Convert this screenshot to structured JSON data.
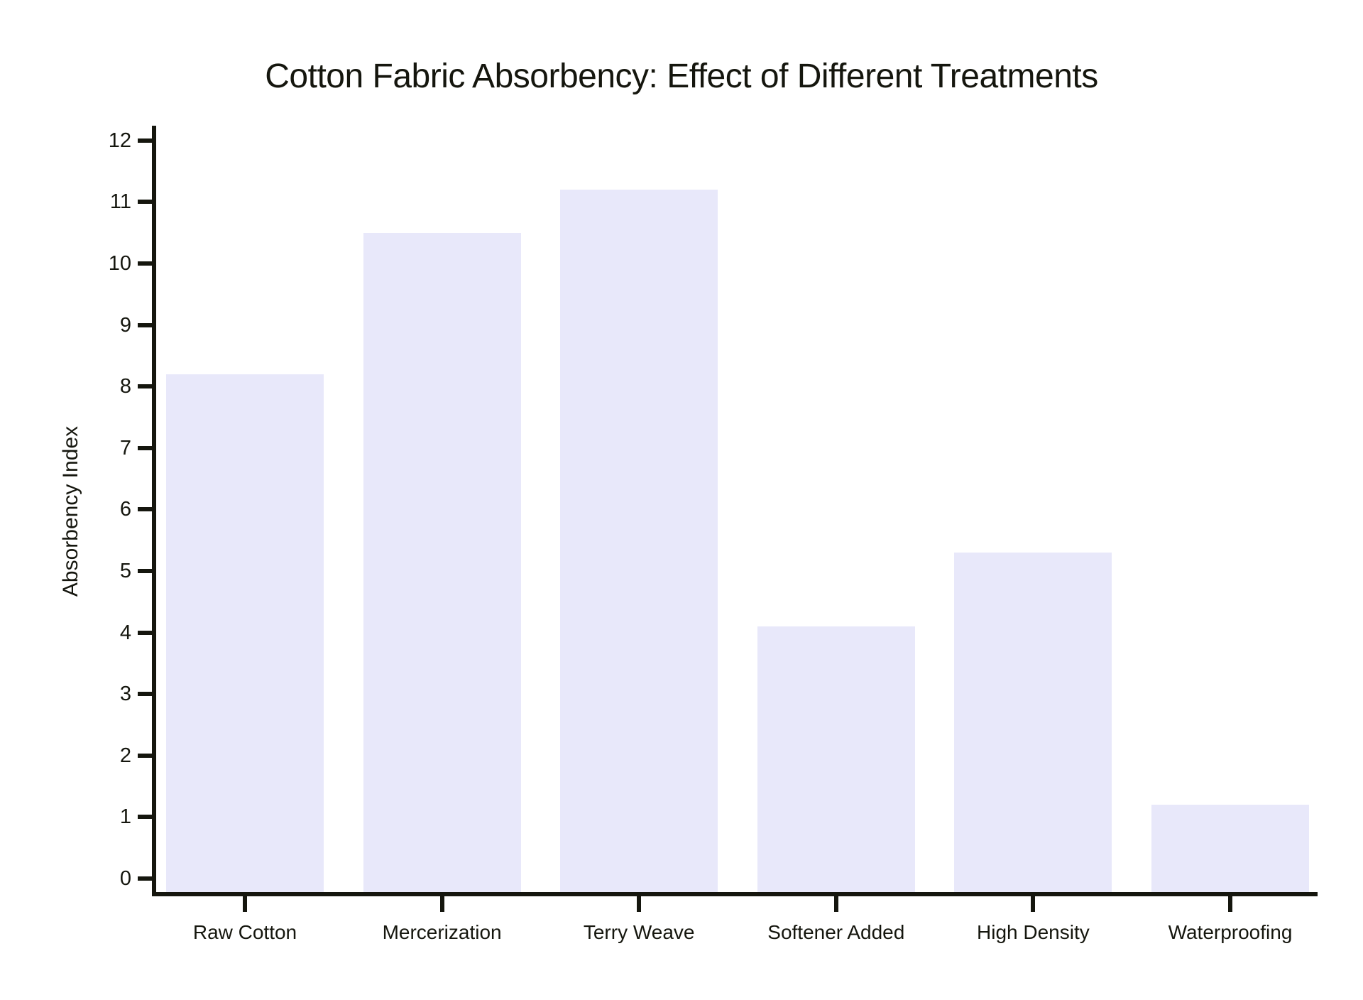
{
  "chart_data": {
    "type": "bar",
    "title": "Cotton Fabric Absorbency: Effect of Different Treatments",
    "categories": [
      "Raw Cotton",
      "Mercerization",
      "Terry Weave",
      "Softener Added",
      "High Density",
      "Waterproofing"
    ],
    "values": [
      8.2,
      10.5,
      11.2,
      4.1,
      5.3,
      1.2
    ],
    "xlabel": "",
    "ylabel": "Absorbency Index",
    "ylim": [
      0,
      12
    ],
    "yticks": [
      0,
      1,
      2,
      3,
      4,
      5,
      6,
      7,
      8,
      9,
      10,
      11,
      12
    ],
    "grid": false,
    "legend": null,
    "colors": {
      "bar_fill": "#e8e8fa",
      "axis": "#15160e",
      "background": "#ffffff"
    }
  }
}
